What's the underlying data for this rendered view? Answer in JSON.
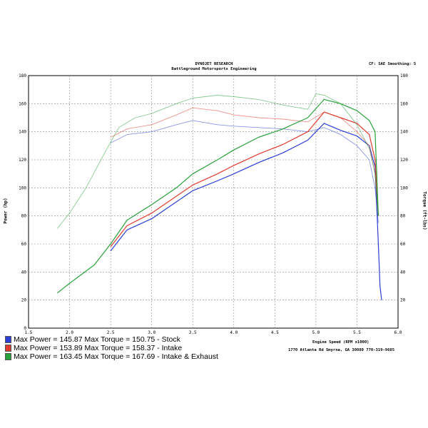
{
  "header": {
    "title": "DYNOJET RESEARCH",
    "subtitle": "Battleground Motorsports Engineering",
    "settings": "CF: SAE  Smoothing: 5"
  },
  "footer": {
    "address": "1770 Atlanta Rd Smyrna, GA 30080  770-319-9685"
  },
  "legend": [
    {
      "text": "Max Power = 145.87  Max Torque = 150.75 -  Stock",
      "color": "#2a3fd6"
    },
    {
      "text": "Max Power = 153.89  Max Torque = 158.37 -  Intake",
      "color": "#e03a2e"
    },
    {
      "text": "Max Power = 163.45  Max Torque = 167.69 -  Intake & Exhaust",
      "color": "#27a23a"
    }
  ],
  "chart_data": {
    "type": "line",
    "title": "DYNOJET RESEARCH",
    "xlabel": "Engine Speed (RPM x1000)",
    "ylabel_left": "Power (hp)",
    "ylabel_right": "Torque (ft-lbs)",
    "xlim": [
      1.5,
      6.0
    ],
    "ylim": [
      0,
      180
    ],
    "x_ticks": [
      "1.5",
      "2.0",
      "2.5",
      "3.0",
      "3.5",
      "4.0",
      "4.5",
      "5.0",
      "5.5",
      "6.0"
    ],
    "y_ticks": [
      "0",
      "20",
      "40",
      "60",
      "80",
      "100",
      "120",
      "140",
      "160",
      "180"
    ],
    "y_ticks_right": [
      "",
      "20",
      "40",
      "60",
      "80",
      "100",
      "120",
      "140",
      "160",
      "180"
    ],
    "grid": true,
    "series": [
      {
        "name": "Stock",
        "kind": "power",
        "color": "#2a3fd6",
        "x": [
          2.5,
          2.7,
          3.0,
          3.3,
          3.5,
          3.8,
          4.0,
          4.3,
          4.6,
          4.9,
          5.1,
          5.3,
          5.5,
          5.65,
          5.72,
          5.76,
          5.78,
          5.8
        ],
        "y": [
          55,
          70,
          78,
          90,
          98,
          105,
          110,
          118,
          125,
          134,
          146,
          141,
          137,
          130,
          115,
          60,
          30,
          20
        ]
      },
      {
        "name": "Stock",
        "kind": "torque",
        "color": "#2a3fd6",
        "x": [
          2.5,
          2.7,
          3.0,
          3.3,
          3.5,
          3.8,
          4.0,
          4.3,
          4.6,
          4.9,
          5.1,
          5.3,
          5.5,
          5.65,
          5.72,
          5.76
        ],
        "y": [
          132,
          138,
          140,
          145,
          148,
          145,
          144,
          143,
          142,
          140,
          143,
          138,
          130,
          120,
          100,
          75
        ]
      },
      {
        "name": "Intake",
        "kind": "power",
        "color": "#e03a2e",
        "x": [
          2.5,
          2.7,
          3.0,
          3.3,
          3.5,
          3.8,
          4.0,
          4.3,
          4.6,
          4.9,
          5.1,
          5.3,
          5.5,
          5.65,
          5.72,
          5.76
        ],
        "y": [
          58,
          73,
          82,
          94,
          102,
          110,
          116,
          124,
          131,
          140,
          154,
          150,
          146,
          138,
          120,
          80
        ]
      },
      {
        "name": "Intake",
        "kind": "torque",
        "color": "#e03a2e",
        "x": [
          2.5,
          2.7,
          3.0,
          3.3,
          3.5,
          3.8,
          4.0,
          4.3,
          4.6,
          4.9,
          5.1,
          5.3,
          5.5,
          5.65,
          5.72,
          5.76
        ],
        "y": [
          136,
          142,
          145,
          152,
          157,
          155,
          152,
          150,
          149,
          147,
          154,
          150,
          140,
          130,
          110,
          80
        ]
      },
      {
        "name": "Intake & Exhaust",
        "kind": "power",
        "color": "#27a23a",
        "x": [
          1.85,
          2.0,
          2.3,
          2.5,
          2.7,
          3.0,
          3.3,
          3.5,
          3.8,
          4.0,
          4.3,
          4.6,
          4.9,
          5.1,
          5.3,
          5.5,
          5.65,
          5.72,
          5.76
        ],
        "y": [
          25,
          32,
          45,
          60,
          77,
          88,
          100,
          110,
          120,
          127,
          136,
          142,
          150,
          163,
          160,
          155,
          148,
          140,
          80
        ]
      },
      {
        "name": "Intake & Exhaust",
        "kind": "torque",
        "color": "#27a23a",
        "x": [
          1.85,
          2.0,
          2.2,
          2.4,
          2.6,
          2.8,
          3.0,
          3.3,
          3.5,
          3.8,
          4.0,
          4.3,
          4.6,
          4.9,
          5.0,
          5.1,
          5.3,
          5.5,
          5.65,
          5.72,
          5.76
        ],
        "y": [
          71,
          82,
          100,
          122,
          143,
          150,
          153,
          160,
          164,
          166,
          165,
          163,
          159,
          156,
          167,
          166,
          160,
          145,
          128,
          110,
          80
        ]
      }
    ]
  }
}
